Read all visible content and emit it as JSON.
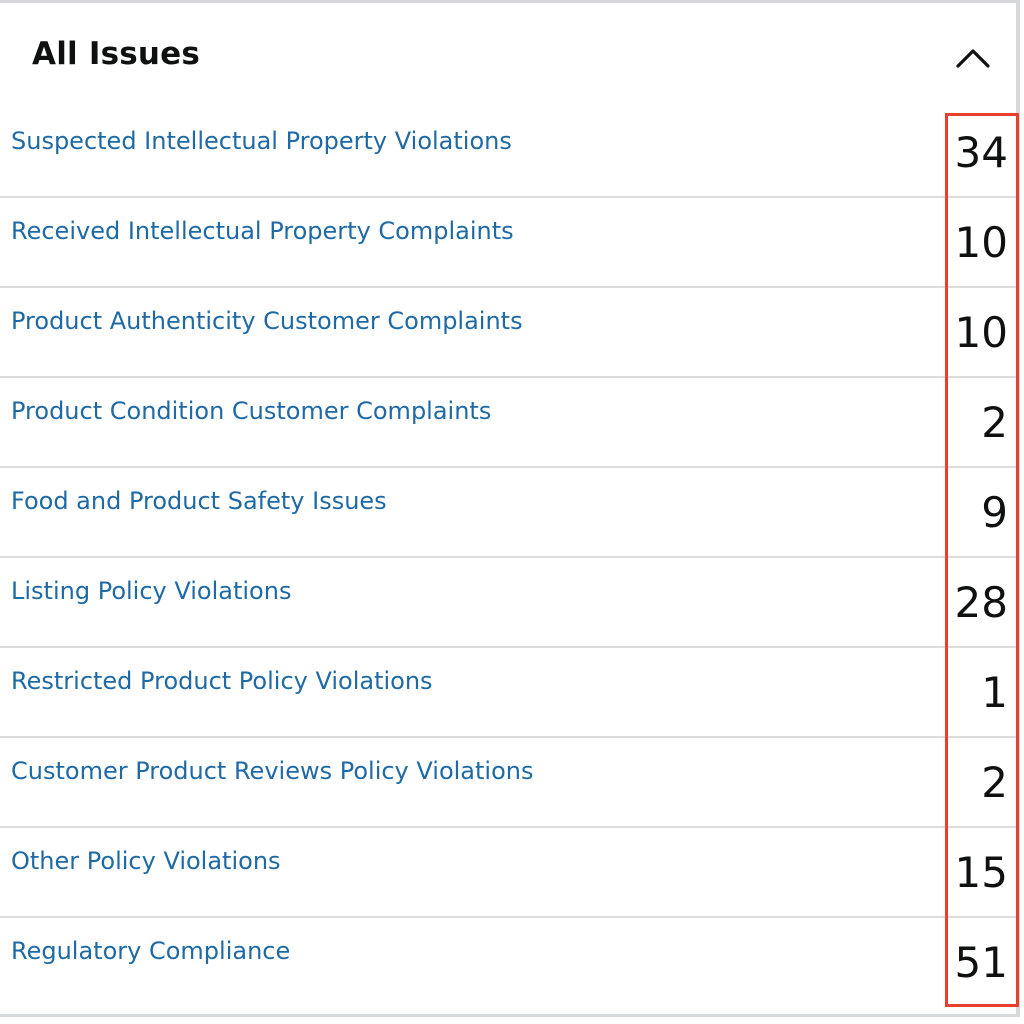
{
  "panel": {
    "title": "All Issues",
    "collapse_icon": "chevron-up-icon"
  },
  "issues": [
    {
      "label": "Suspected Intellectual Property Violations",
      "count": "34"
    },
    {
      "label": "Received Intellectual Property Complaints",
      "count": "10"
    },
    {
      "label": "Product Authenticity Customer Complaints",
      "count": "10"
    },
    {
      "label": "Product Condition Customer Complaints",
      "count": "2"
    },
    {
      "label": "Food and Product Safety Issues",
      "count": "9"
    },
    {
      "label": "Listing Policy Violations",
      "count": "28"
    },
    {
      "label": "Restricted Product Policy Violations",
      "count": "1"
    },
    {
      "label": "Customer Product Reviews Policy Violations",
      "count": "2"
    },
    {
      "label": "Other Policy Violations",
      "count": "15"
    },
    {
      "label": "Regulatory Compliance",
      "count": "51"
    }
  ],
  "colors": {
    "link": "#1f6aa5",
    "text": "#0f1111",
    "highlight": "#e8402a",
    "divider": "#dcdcdc"
  }
}
